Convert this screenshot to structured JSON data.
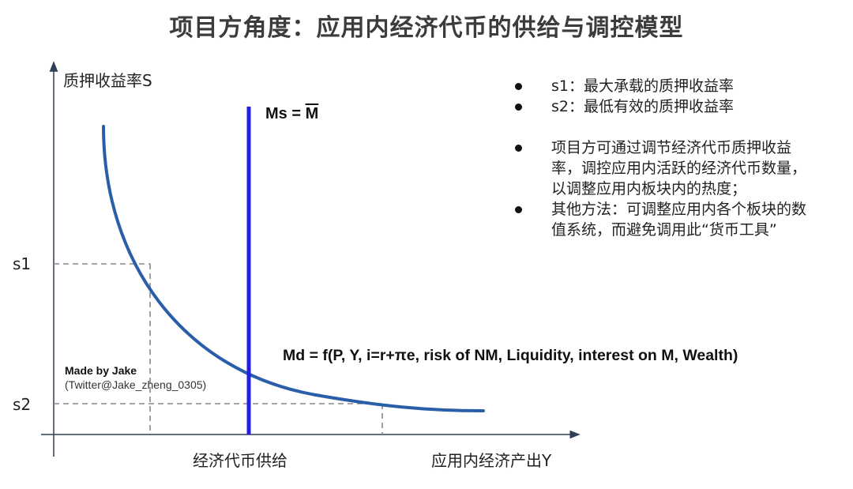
{
  "title": "项目方角度：应用内经济代币的供给与调控模型",
  "diagram": {
    "y_axis_label": "质押收益率S",
    "x_axis_label": "应用内经济产出Y",
    "x_tick_label": "经济代币供给",
    "s1_label": "s1",
    "s2_label": "s2",
    "ms_label_prefix": "Ms = ",
    "ms_label_symbol": "M",
    "md_label": "Md = f(P, Y, i=r+πe, risk of NM, Liquidity, interest on M, Wealth)",
    "supply_line_color": "#1f1fe6",
    "demand_curve_color": "#2a5ea8",
    "guide_line_color": "#888888",
    "axis_color": "#2f3f55"
  },
  "credit": {
    "name": "Made by Jake",
    "handle": "(Twitter@Jake_zheng_0305)"
  },
  "notes": [
    "s1：最大承载的质押收益率",
    "s2：最低有效的质押收益率",
    "项目方可通过调节经济代币质押收益率，调控应用内活跃的经济代币数量，以调整应用内板块内的热度；",
    "其他方法：可调整应用内各个板块的数值系统，而避免调用此“货币工具”"
  ]
}
